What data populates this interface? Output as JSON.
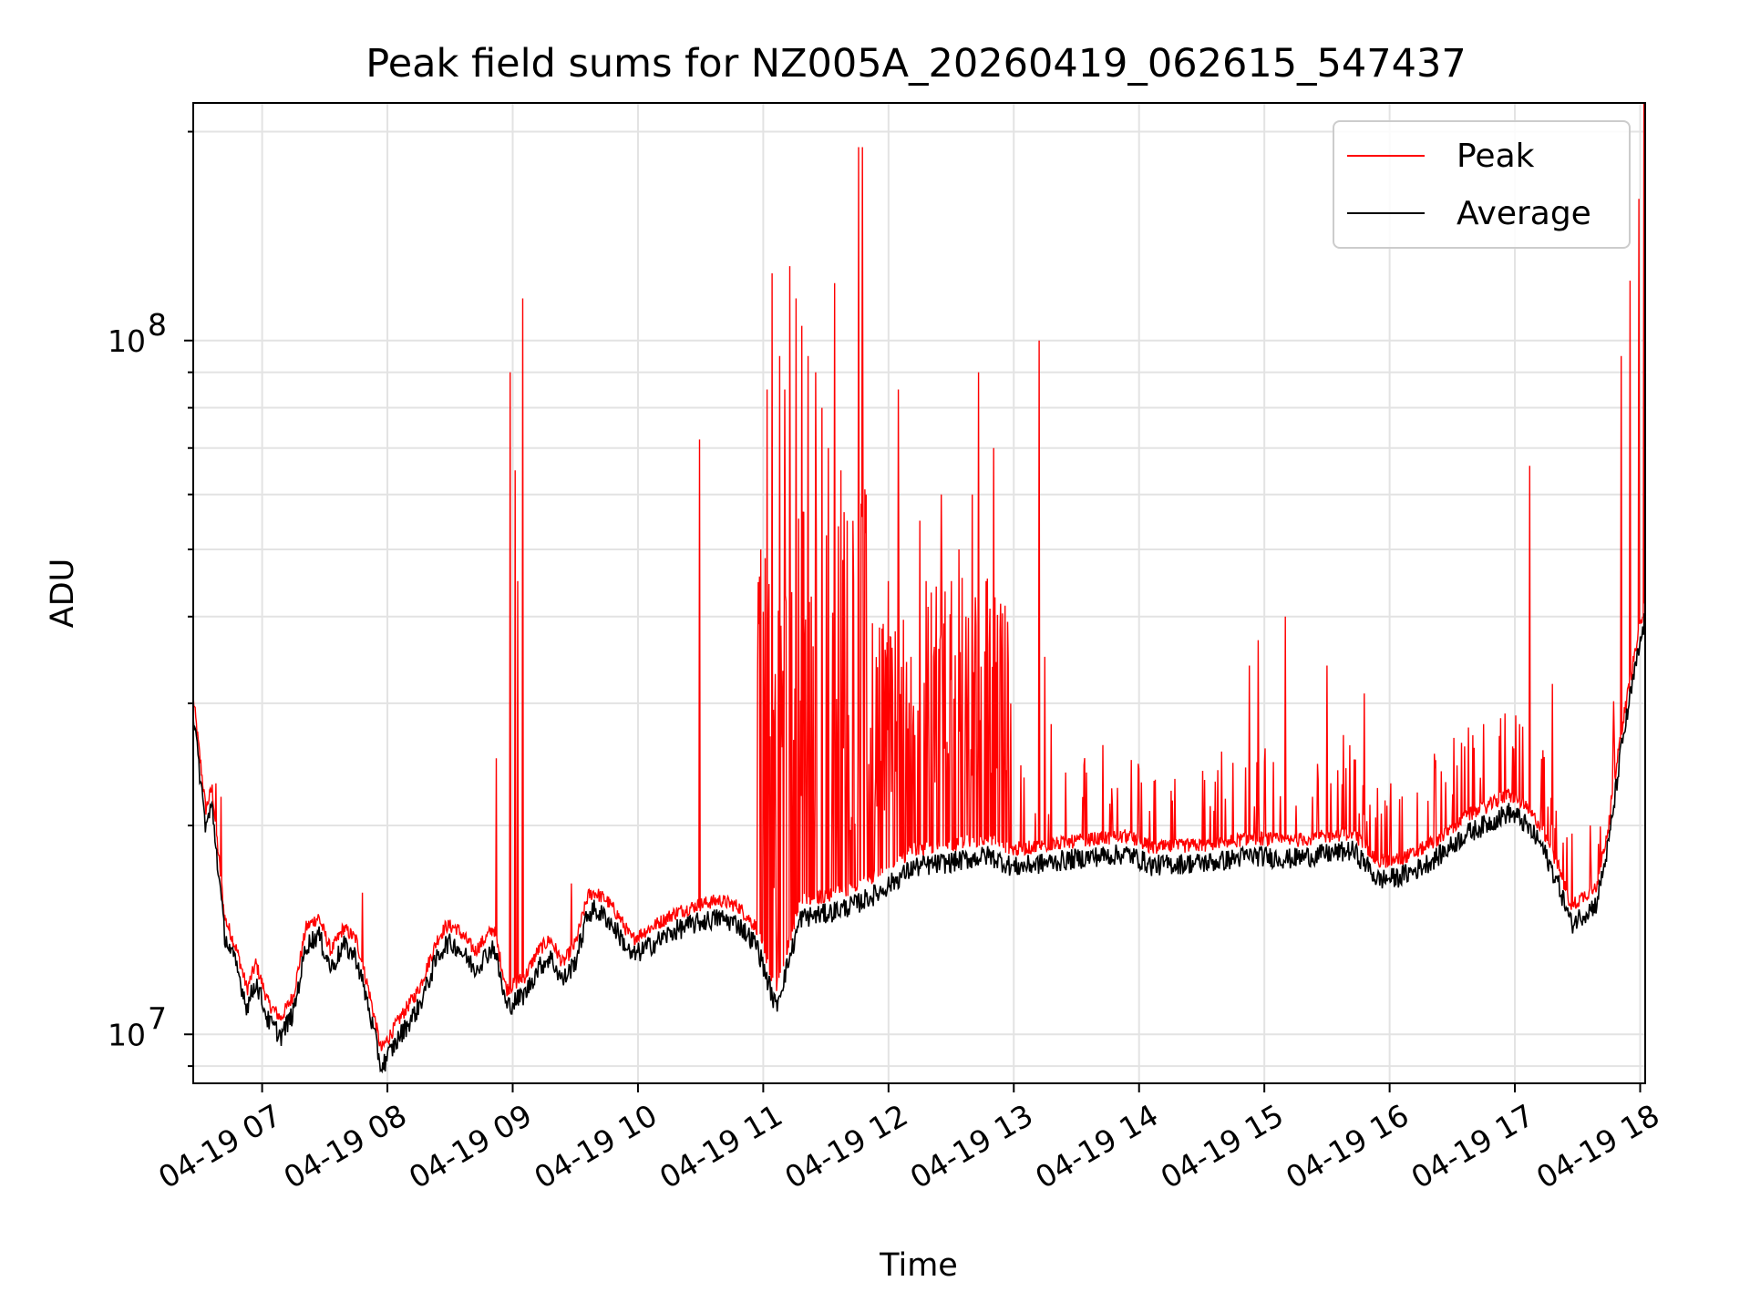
{
  "chart_data": {
    "type": "line",
    "title": "Peak field sums for NZ005A_20260419_062615_547437",
    "xlabel": "Time",
    "ylabel": "ADU",
    "yscale": "log",
    "ylim": [
      8500000,
      220000000
    ],
    "xlim_hours": [
      6.45,
      18.04
    ],
    "x_ticks": [
      {
        "hour": 7,
        "label": "04-19 07"
      },
      {
        "hour": 8,
        "label": "04-19 08"
      },
      {
        "hour": 9,
        "label": "04-19 09"
      },
      {
        "hour": 10,
        "label": "04-19 10"
      },
      {
        "hour": 11,
        "label": "04-19 11"
      },
      {
        "hour": 12,
        "label": "04-19 12"
      },
      {
        "hour": 13,
        "label": "04-19 13"
      },
      {
        "hour": 14,
        "label": "04-19 14"
      },
      {
        "hour": 15,
        "label": "04-19 15"
      },
      {
        "hour": 16,
        "label": "04-19 16"
      },
      {
        "hour": 17,
        "label": "04-19 17"
      },
      {
        "hour": 18,
        "label": "04-19 18"
      }
    ],
    "y_major_ticks": [
      {
        "value": 10000000,
        "base": "10",
        "exp": "7"
      },
      {
        "value": 100000000,
        "base": "10",
        "exp": "8"
      }
    ],
    "y_minor_ticks": [
      9000000,
      20000000,
      30000000,
      40000000,
      50000000,
      60000000,
      70000000,
      80000000,
      90000000,
      200000000
    ],
    "legend": {
      "position": "upper right",
      "entries": [
        "Peak",
        "Average"
      ]
    },
    "colors": {
      "peak": "#ff0000",
      "average": "#000000"
    },
    "series": [
      {
        "name": "Average",
        "color": "#000000",
        "x_hours": [
          6.45,
          6.55,
          6.6,
          6.7,
          6.8,
          6.88,
          6.95,
          7.05,
          7.15,
          7.25,
          7.35,
          7.45,
          7.55,
          7.65,
          7.75,
          7.85,
          7.95,
          8.1,
          8.25,
          8.4,
          8.47,
          8.55,
          8.7,
          8.85,
          8.95,
          9.1,
          9.2,
          9.3,
          9.4,
          9.5,
          9.6,
          9.65,
          9.75,
          9.85,
          9.95,
          10.1,
          10.3,
          10.5,
          10.65,
          10.8,
          10.95,
          11.1,
          11.3,
          11.5,
          11.65,
          11.75,
          11.83,
          11.9,
          12.0,
          12.2,
          12.5,
          12.8,
          13.0,
          13.3,
          13.6,
          13.9,
          14.0,
          14.1,
          14.3,
          14.6,
          14.9,
          15.2,
          15.5,
          15.7,
          15.8,
          15.9,
          16.05,
          16.2,
          16.4,
          16.6,
          16.8,
          16.95,
          17.05,
          17.2,
          17.35,
          17.45,
          17.55,
          17.65,
          17.75,
          17.85,
          17.95,
          18.04
        ],
        "values": [
          29000000,
          20000000,
          21500000,
          14000000,
          12500000,
          11000000,
          12000000,
          10500000,
          10000000,
          10800000,
          13500000,
          14000000,
          12500000,
          13500000,
          13000000,
          11000000,
          9000000,
          10000000,
          11000000,
          13000000,
          13600000,
          13500000,
          12500000,
          13500000,
          11000000,
          11500000,
          12500000,
          13000000,
          12000000,
          12800000,
          15000000,
          15200000,
          14800000,
          14000000,
          13000000,
          13500000,
          14200000,
          14600000,
          14800000,
          14500000,
          13500000,
          11000000,
          14800000,
          15000000,
          15300000,
          15500000,
          15800000,
          16000000,
          16500000,
          17500000,
          17800000,
          18200000,
          17500000,
          17800000,
          18100000,
          18300000,
          18000000,
          17600000,
          17700000,
          17800000,
          18200000,
          18000000,
          18300000,
          18500000,
          17800000,
          16800000,
          16900000,
          17300000,
          18200000,
          19500000,
          20300000,
          21000000,
          20500000,
          19000000,
          16500000,
          14500000,
          15000000,
          15500000,
          19000000,
          26000000,
          33000000,
          40000000
        ]
      },
      {
        "name": "Peak",
        "color": "#ff0000",
        "spikes": [
          {
            "hour": 6.63,
            "value": 23000000
          },
          {
            "hour": 6.67,
            "value": 22000000
          },
          {
            "hour": 7.8,
            "value": 16000000
          },
          {
            "hour": 8.87,
            "value": 25000000
          },
          {
            "hour": 8.98,
            "value": 90000000
          },
          {
            "hour": 9.02,
            "value": 65000000
          },
          {
            "hour": 9.04,
            "value": 45000000
          },
          {
            "hour": 9.08,
            "value": 115000000
          },
          {
            "hour": 9.47,
            "value": 16500000
          },
          {
            "hour": 10.49,
            "value": 72000000
          },
          {
            "hour": 10.98,
            "value": 50000000
          },
          {
            "hour": 11.03,
            "value": 85000000
          },
          {
            "hour": 11.07,
            "value": 125000000
          },
          {
            "hour": 11.13,
            "value": 95000000
          },
          {
            "hour": 11.17,
            "value": 85000000
          },
          {
            "hour": 11.21,
            "value": 128000000
          },
          {
            "hour": 11.26,
            "value": 115000000
          },
          {
            "hour": 11.31,
            "value": 105000000
          },
          {
            "hour": 11.36,
            "value": 95000000
          },
          {
            "hour": 11.42,
            "value": 90000000
          },
          {
            "hour": 11.47,
            "value": 80000000
          },
          {
            "hour": 11.52,
            "value": 70000000
          },
          {
            "hour": 11.57,
            "value": 121000000
          },
          {
            "hour": 11.62,
            "value": 65000000
          },
          {
            "hour": 11.67,
            "value": 55000000
          },
          {
            "hour": 11.72,
            "value": 45000000
          },
          {
            "hour": 11.76,
            "value": 190000000
          },
          {
            "hour": 11.79,
            "value": 190000000
          },
          {
            "hour": 11.82,
            "value": 60000000
          },
          {
            "hour": 12.0,
            "value": 45000000
          },
          {
            "hour": 12.08,
            "value": 85000000
          },
          {
            "hour": 12.18,
            "value": 35000000
          },
          {
            "hour": 12.25,
            "value": 55000000
          },
          {
            "hour": 12.3,
            "value": 45000000
          },
          {
            "hour": 12.36,
            "value": 35000000
          },
          {
            "hour": 12.42,
            "value": 60000000
          },
          {
            "hour": 12.5,
            "value": 45000000
          },
          {
            "hour": 12.56,
            "value": 50000000
          },
          {
            "hour": 12.62,
            "value": 40000000
          },
          {
            "hour": 12.67,
            "value": 60000000
          },
          {
            "hour": 12.72,
            "value": 90000000
          },
          {
            "hour": 12.78,
            "value": 45000000
          },
          {
            "hour": 12.84,
            "value": 70000000
          },
          {
            "hour": 12.9,
            "value": 35000000
          },
          {
            "hour": 13.2,
            "value": 100000000
          },
          {
            "hour": 13.25,
            "value": 35000000
          },
          {
            "hour": 13.3,
            "value": 28000000
          },
          {
            "hour": 14.6,
            "value": 21000000
          },
          {
            "hour": 14.88,
            "value": 34000000
          },
          {
            "hour": 14.95,
            "value": 37000000
          },
          {
            "hour": 15.17,
            "value": 40000000
          },
          {
            "hour": 15.5,
            "value": 34000000
          },
          {
            "hour": 15.63,
            "value": 27000000
          },
          {
            "hour": 15.8,
            "value": 31000000
          },
          {
            "hour": 16.01,
            "value": 23000000
          },
          {
            "hour": 16.6,
            "value": 26000000
          },
          {
            "hour": 16.75,
            "value": 28000000
          },
          {
            "hour": 16.92,
            "value": 29000000
          },
          {
            "hour": 16.98,
            "value": 26000000
          },
          {
            "hour": 17.12,
            "value": 66000000
          },
          {
            "hour": 17.3,
            "value": 32000000
          },
          {
            "hour": 17.6,
            "value": 20000000
          },
          {
            "hour": 17.77,
            "value": 22000000
          },
          {
            "hour": 17.85,
            "value": 95000000
          },
          {
            "hour": 17.92,
            "value": 122000000
          },
          {
            "hour": 17.99,
            "value": 160000000
          },
          {
            "hour": 18.03,
            "value": 220000000
          }
        ]
      }
    ]
  }
}
